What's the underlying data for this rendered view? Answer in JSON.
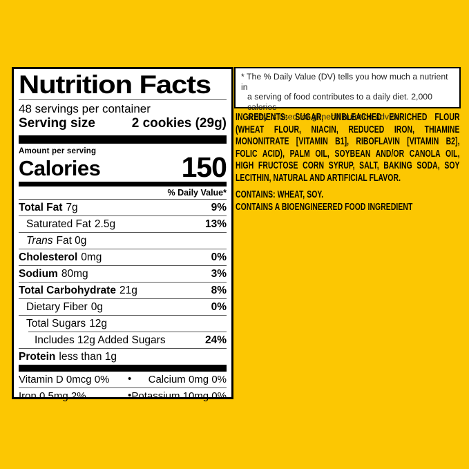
{
  "colors": {
    "bg_yellow": "#FCC702",
    "panel_white": "#FFFFFF",
    "ink": "#000000",
    "hairline": "#555555"
  },
  "nutrition_panel": {
    "title": "Nutrition Facts",
    "servings_per_container": "48 servings per container",
    "serving_size_label": "Serving size",
    "serving_size_value": "2 cookies (29g)",
    "amount_per_serving": "Amount per serving",
    "calories_label": "Calories",
    "calories_value": "150",
    "daily_value_header": "% Daily Value*",
    "rows": [
      {
        "name": "Total Fat",
        "amount": "7g",
        "dv": "9%"
      },
      {
        "name": "Saturated Fat",
        "amount": "2.5g",
        "dv": "13%"
      },
      {
        "name": "Trans",
        "amount": "Fat 0g",
        "dv": ""
      },
      {
        "name": "Cholesterol",
        "amount": "0mg",
        "dv": "0%"
      },
      {
        "name": "Sodium",
        "amount": "80mg",
        "dv": "3%"
      },
      {
        "name": "Total Carbohydrate",
        "amount": "21g",
        "dv": "8%"
      },
      {
        "name": "Dietary Fiber",
        "amount": "0g",
        "dv": "0%"
      },
      {
        "name": "Total Sugars",
        "amount": "12g",
        "dv": ""
      },
      {
        "name": "Includes 12g Added Sugars",
        "amount": "",
        "dv": "24%"
      },
      {
        "name": "Protein",
        "amount": "less than 1g",
        "dv": ""
      }
    ],
    "micronutrients": [
      {
        "left": "Vitamin D 0mcg 0%",
        "bullet": "•",
        "right": "Calcium 0mg 0%"
      },
      {
        "left": "Iron 0.5mg 2%",
        "bullet": "•",
        "right": "Potassium 10mg 0%"
      }
    ]
  },
  "footnote": {
    "lines": [
      "* The % Daily Value (DV) tells you how much a nutrient in",
      "a serving of food contributes to a daily diet. 2,000 calories",
      "a day is used for general nutrition advice."
    ]
  },
  "ingredients": {
    "justified_lines": [
      "INGREDIENTS: SUGAR, UNBLEACHED ENRICHED FLOUR",
      "(WHEAT FLOUR, NIACIN, REDUCED IRON, THIAMINE",
      "MONONITRATE [VITAMIN B1], RIBOFLAVIN [VITAMIN B2],",
      "FOLIC ACID), PALM OIL, SOYBEAN AND/OR CANOLA OIL,",
      "HIGH FRUCTOSE CORN SYRUP, SALT, BAKING SODA, SOY"
    ],
    "last_line": "LECITHIN, NATURAL AND ARTIFICIAL FLAVOR.",
    "contains": "CONTAINS: WHEAT, SOY.",
    "bioengineered": "CONTAINS A BIOENGINEERED FOOD INGREDIENT"
  }
}
